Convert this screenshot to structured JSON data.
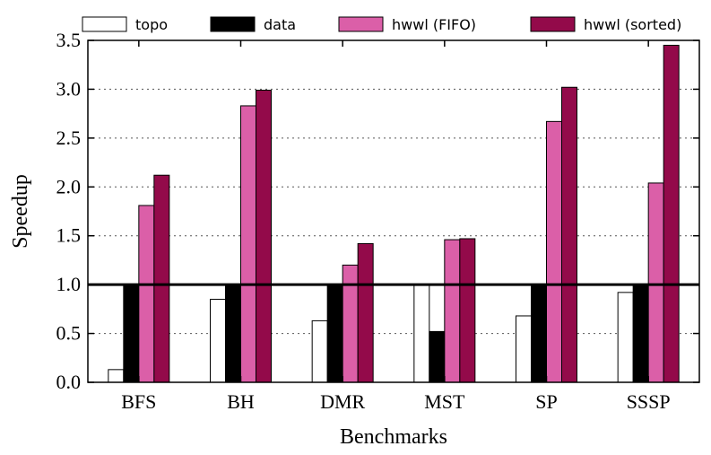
{
  "chart_data": {
    "type": "bar",
    "xlabel": "Benchmarks",
    "ylabel": "Speedup",
    "ylim": [
      0,
      3.5
    ],
    "yticks": [
      "0.0",
      "0.5",
      "1.0",
      "1.5",
      "2.0",
      "2.5",
      "3.0",
      "3.5"
    ],
    "grid": "horizontal dotted",
    "legend_position": "top",
    "reference_line": 1.0,
    "categories": [
      "BFS",
      "BH",
      "DMR",
      "MST",
      "SP",
      "SSSP"
    ],
    "series": [
      {
        "name": "topo",
        "color": "#ffffff",
        "values": [
          0.13,
          0.85,
          0.63,
          1.0,
          0.68,
          0.92
        ]
      },
      {
        "name": "data",
        "color": "#000000",
        "values": [
          1.0,
          1.0,
          1.0,
          0.52,
          1.0,
          1.0
        ]
      },
      {
        "name": "hwwl (FIFO)",
        "color": "#db5fa8",
        "values": [
          1.81,
          2.83,
          1.2,
          1.46,
          2.67,
          2.04
        ]
      },
      {
        "name": "hwwl (sorted)",
        "color": "#930a4a",
        "values": [
          2.12,
          2.99,
          1.42,
          1.47,
          3.02,
          3.45
        ]
      }
    ]
  }
}
